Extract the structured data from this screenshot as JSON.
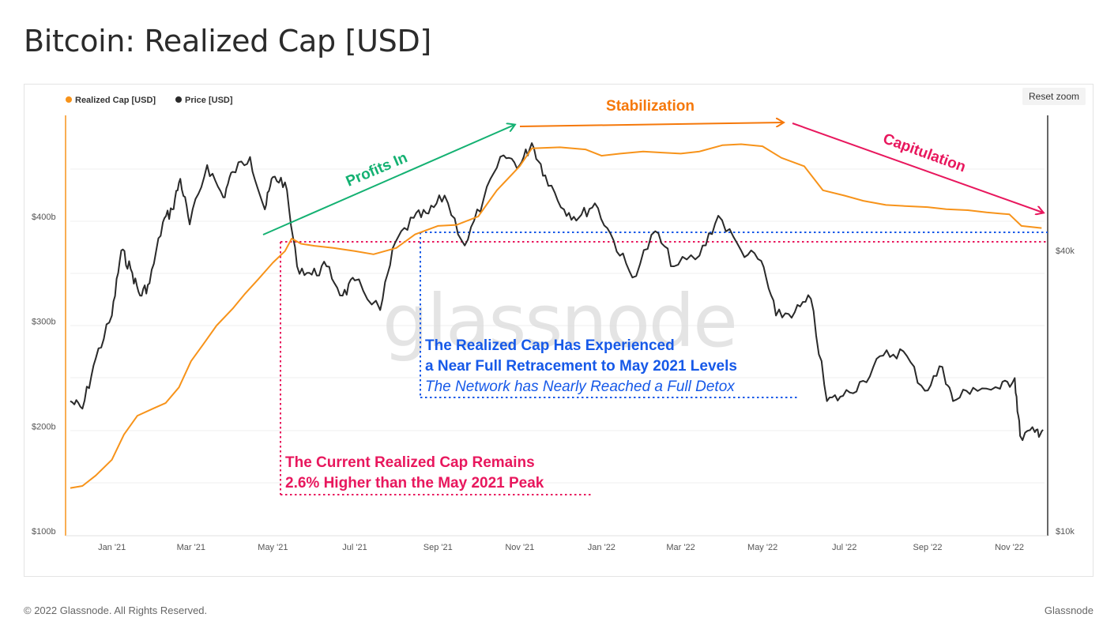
{
  "title": "Bitcoin: Realized Cap [USD]",
  "reset_zoom_label": "Reset zoom",
  "footer": {
    "copyright": "© 2022 Glassnode. All Rights Reserved.",
    "brand": "Glassnode"
  },
  "watermark": "glassnode",
  "colors": {
    "realized_cap": "#f7931a",
    "price": "#2a2a2a",
    "profits": "#14b172",
    "stabilization": "#f5780a",
    "capitulation": "#e8175d",
    "blue": "#1659e8"
  },
  "chart_data": {
    "type": "line",
    "x_tick_labels": [
      "Jan '21",
      "Mar '21",
      "May '21",
      "Jul '21",
      "Sep '21",
      "Nov '21",
      "Jan '22",
      "Mar '22",
      "May '22",
      "Jul '22",
      "Sep '22",
      "Nov '22"
    ],
    "y_left_ticks": [
      "$100b",
      "$200b",
      "$300b",
      "$400b"
    ],
    "y_right_ticks": [
      "$10k",
      "$40k"
    ],
    "y_left_range": [
      100,
      500
    ],
    "y_right_scale": "log",
    "legend": {
      "placement": "top-left",
      "items": [
        {
          "name": "Realized Cap [USD]",
          "color": "#f7931a"
        },
        {
          "name": "Price [USD]",
          "color": "#2a2a2a"
        }
      ]
    },
    "series": [
      {
        "name": "Realized Cap [USD]",
        "axis": "left",
        "points": [
          [
            "2020-12-01",
            141
          ],
          [
            "2020-12-10",
            143
          ],
          [
            "2020-12-20",
            153
          ],
          [
            "2021-01-01",
            168
          ],
          [
            "2021-01-10",
            192
          ],
          [
            "2021-01-20",
            210
          ],
          [
            "2021-02-01",
            217
          ],
          [
            "2021-02-10",
            222
          ],
          [
            "2021-02-20",
            237
          ],
          [
            "2021-03-01",
            262
          ],
          [
            "2021-03-10",
            278
          ],
          [
            "2021-03-20",
            296
          ],
          [
            "2021-04-01",
            312
          ],
          [
            "2021-04-10",
            326
          ],
          [
            "2021-04-20",
            340
          ],
          [
            "2021-05-01",
            356
          ],
          [
            "2021-05-10",
            367
          ],
          [
            "2021-05-15",
            379
          ],
          [
            "2021-05-22",
            374
          ],
          [
            "2021-06-01",
            372
          ],
          [
            "2021-06-15",
            370
          ],
          [
            "2021-07-01",
            367
          ],
          [
            "2021-07-15",
            364
          ],
          [
            "2021-08-01",
            370
          ],
          [
            "2021-08-15",
            383
          ],
          [
            "2021-09-01",
            391
          ],
          [
            "2021-09-15",
            392
          ],
          [
            "2021-10-01",
            400
          ],
          [
            "2021-10-15",
            425
          ],
          [
            "2021-11-01",
            448
          ],
          [
            "2021-11-10",
            465
          ],
          [
            "2021-12-01",
            466
          ],
          [
            "2021-12-20",
            464
          ],
          [
            "2022-01-01",
            458
          ],
          [
            "2022-01-15",
            460
          ],
          [
            "2022-02-01",
            462
          ],
          [
            "2022-02-15",
            461
          ],
          [
            "2022-03-01",
            460
          ],
          [
            "2022-03-15",
            462
          ],
          [
            "2022-04-01",
            468
          ],
          [
            "2022-04-15",
            469
          ],
          [
            "2022-05-01",
            467
          ],
          [
            "2022-05-15",
            456
          ],
          [
            "2022-06-01",
            448
          ],
          [
            "2022-06-15",
            425
          ],
          [
            "2022-07-01",
            420
          ],
          [
            "2022-07-15",
            415
          ],
          [
            "2022-08-01",
            411
          ],
          [
            "2022-08-15",
            410
          ],
          [
            "2022-09-01",
            409
          ],
          [
            "2022-09-15",
            407
          ],
          [
            "2022-10-01",
            406
          ],
          [
            "2022-10-15",
            404
          ],
          [
            "2022-11-01",
            402
          ],
          [
            "2022-11-10",
            391
          ],
          [
            "2022-11-25",
            389
          ]
        ]
      },
      {
        "name": "Price [USD]",
        "axis": "right",
        "points": [
          [
            "2020-12-01",
            19000
          ],
          [
            "2020-12-10",
            18300
          ],
          [
            "2020-12-20",
            23500
          ],
          [
            "2021-01-01",
            29000
          ],
          [
            "2021-01-08",
            40000
          ],
          [
            "2021-01-15",
            36500
          ],
          [
            "2021-01-22",
            32000
          ],
          [
            "2021-01-29",
            34000
          ],
          [
            "2021-02-08",
            46000
          ],
          [
            "2021-02-15",
            49000
          ],
          [
            "2021-02-21",
            57000
          ],
          [
            "2021-02-28",
            45500
          ],
          [
            "2021-03-13",
            61000
          ],
          [
            "2021-03-25",
            52000
          ],
          [
            "2021-04-01",
            59000
          ],
          [
            "2021-04-14",
            63500
          ],
          [
            "2021-04-25",
            49000
          ],
          [
            "2021-05-01",
            57500
          ],
          [
            "2021-05-10",
            56000
          ],
          [
            "2021-05-19",
            37000
          ],
          [
            "2021-05-30",
            35500
          ],
          [
            "2021-06-10",
            37000
          ],
          [
            "2021-06-22",
            32000
          ],
          [
            "2021-07-01",
            34500
          ],
          [
            "2021-07-20",
            29800
          ],
          [
            "2021-07-31",
            41500
          ],
          [
            "2021-08-14",
            47000
          ],
          [
            "2021-08-25",
            48000
          ],
          [
            "2021-09-06",
            52500
          ],
          [
            "2021-09-21",
            41000
          ],
          [
            "2021-10-05",
            51500
          ],
          [
            "2021-10-20",
            64000
          ],
          [
            "2021-11-01",
            61000
          ],
          [
            "2021-11-10",
            68000
          ],
          [
            "2021-11-20",
            58000
          ],
          [
            "2021-12-04",
            49000
          ],
          [
            "2021-12-15",
            47000
          ],
          [
            "2021-12-27",
            50500
          ],
          [
            "2022-01-10",
            42000
          ],
          [
            "2022-01-24",
            35000
          ],
          [
            "2022-02-10",
            44000
          ],
          [
            "2022-02-24",
            37000
          ],
          [
            "2022-03-15",
            39000
          ],
          [
            "2022-03-29",
            47500
          ],
          [
            "2022-04-15",
            40000
          ],
          [
            "2022-04-30",
            38000
          ],
          [
            "2022-05-11",
            29000
          ],
          [
            "2022-05-25",
            29500
          ],
          [
            "2022-06-06",
            31500
          ],
          [
            "2022-06-18",
            19000
          ],
          [
            "2022-06-30",
            19500
          ],
          [
            "2022-07-15",
            21000
          ],
          [
            "2022-07-30",
            23800
          ],
          [
            "2022-08-14",
            24300
          ],
          [
            "2022-08-30",
            20000
          ],
          [
            "2022-09-12",
            22500
          ],
          [
            "2022-09-20",
            19000
          ],
          [
            "2022-10-05",
            20300
          ],
          [
            "2022-10-25",
            20200
          ],
          [
            "2022-11-05",
            21300
          ],
          [
            "2022-11-09",
            16000
          ],
          [
            "2022-11-20",
            16300
          ],
          [
            "2022-11-26",
            16500
          ]
        ]
      }
    ]
  },
  "annotations": {
    "profits_in": "Profits In",
    "stabilization": "Stabilization",
    "capitulation": "Capitulation",
    "blue_line1": "The Realized Cap Has Experienced",
    "blue_line2": "a Near Full Retracement to May 2021 Levels",
    "blue_line3": "The Network has Nearly Reached a Full Detox",
    "red_line1": "The Current Realized Cap Remains",
    "red_line2": "2.6% Higher than the May 2021 Peak"
  }
}
